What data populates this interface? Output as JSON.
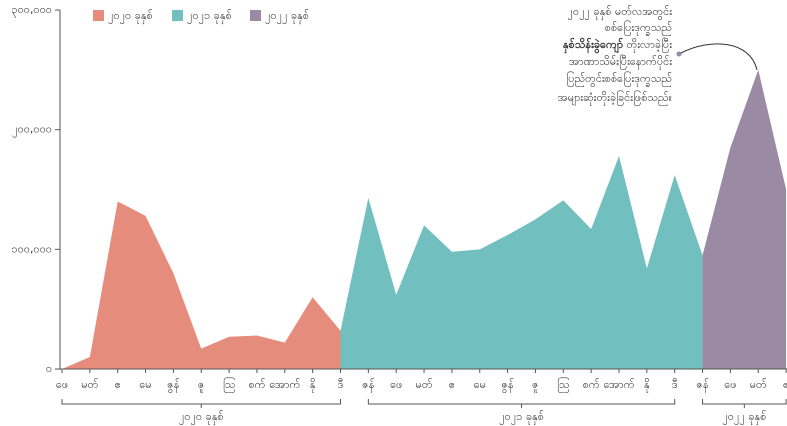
{
  "chart_data": {
    "type": "area",
    "categories": [
      "ဖေ",
      "မတ်",
      "ဧ",
      "မေ",
      "ဇွန်",
      "ဇူ",
      "ဩ",
      "စက်",
      "အောက်",
      "နို",
      "ဒီ",
      "ဇန်",
      "ဖေ",
      "မတ်",
      "ဧ",
      "မေ",
      "ဇွန်",
      "ဇူ",
      "ဩ",
      "စက်",
      "အောက်",
      "နို",
      "ဒီ",
      "ဇန်",
      "ဖေ",
      "မတ်",
      "ဧ"
    ],
    "series": [
      {
        "name": "၂၀၂၀ ခုနှစ်",
        "color": "#e68c7c",
        "values": [
          0,
          10000,
          140000,
          128000,
          80000,
          17000,
          27000,
          28000,
          22000,
          60000,
          32000,
          null,
          null,
          null,
          null,
          null,
          null,
          null,
          null,
          null,
          null,
          null,
          null,
          null,
          null,
          null,
          null
        ]
      },
      {
        "name": "၂၀၂၁ ခုနှစ်",
        "color": "#72bfc0",
        "values": [
          null,
          null,
          null,
          null,
          null,
          null,
          null,
          null,
          null,
          null,
          32000,
          143000,
          62000,
          120000,
          98000,
          100000,
          112000,
          125000,
          141000,
          117000,
          178000,
          84000,
          162000,
          95000,
          null,
          null,
          null
        ]
      },
      {
        "name": "၂၀၂၂ ခုနှစ်",
        "color": "#9a8aa3",
        "values": [
          null,
          null,
          null,
          null,
          null,
          null,
          null,
          null,
          null,
          null,
          null,
          null,
          null,
          null,
          null,
          null,
          null,
          null,
          null,
          null,
          null,
          null,
          null,
          95000,
          185000,
          250000,
          150000
        ]
      }
    ],
    "ylim": [
      0,
      300000
    ],
    "yticks": [
      {
        "value": 0,
        "label": "၀"
      },
      {
        "value": 100000,
        "label": "၁၀၀,၀၀၀"
      },
      {
        "value": 200000,
        "label": "၂၀၀,၀၀၀"
      },
      {
        "value": 300000,
        "label": "၃၀၀,၀၀၀"
      }
    ],
    "annotation": [
      {
        "text": "၂၀၂၂ ခုနှစ် မတ်လအတွင်း"
      },
      {
        "text": "စစ်ပြေးဒုက္ခသည်"
      },
      {
        "bold": "နှစ်သိန်းခွဲကျော်",
        "text": " တိုးလာခဲ့ပြီး"
      },
      {
        "text": "အာဏာသိမ်းပြီးနောက်ပိုင်း"
      },
      {
        "text": "ပြည်တွင်းစစ်ပြေးဒုက္ခသည်"
      },
      {
        "text": "အများဆုံးတိုးခဲ့ခြင်းဖြစ်သည်။"
      }
    ]
  }
}
